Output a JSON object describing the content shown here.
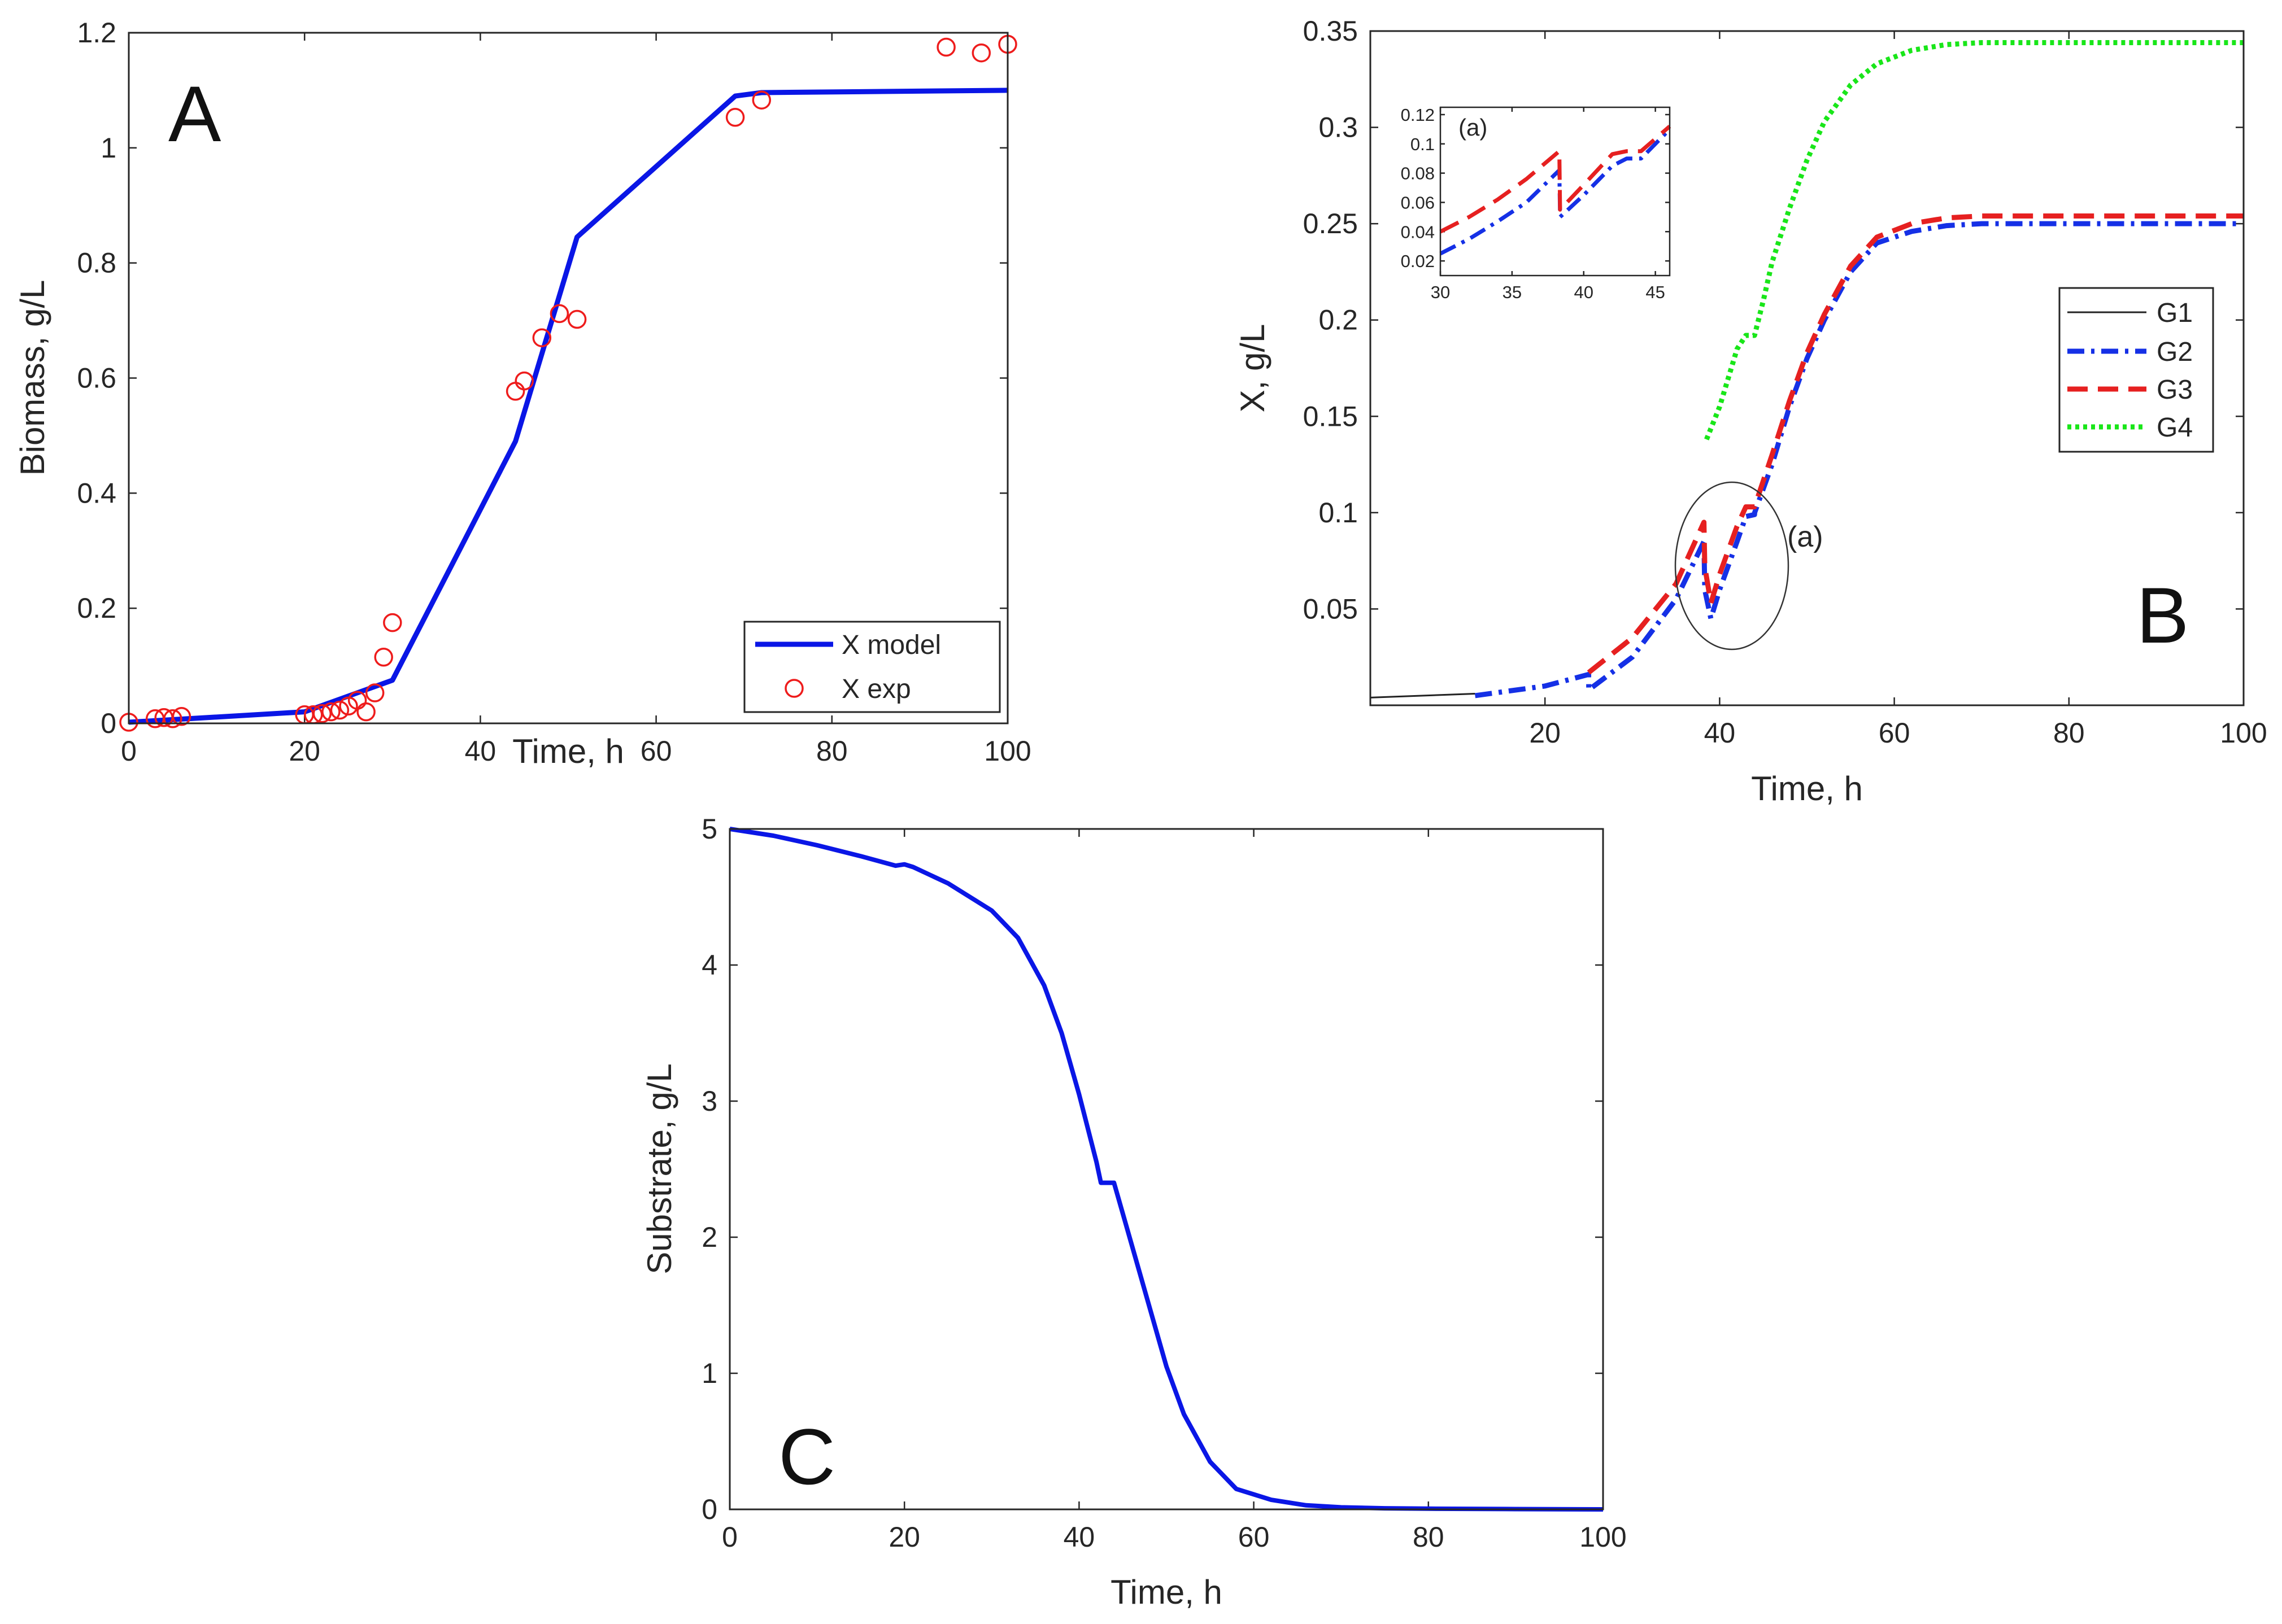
{
  "colors": {
    "model": "#0a16e6",
    "exp": "#ee1c1c",
    "g1": "#222222",
    "g2": "#1530e6",
    "g3": "#e62020",
    "g4": "#19e619",
    "axis": "#262626"
  },
  "chart_data": [
    {
      "id": "A",
      "type": "line+scatter",
      "panel_label": "A",
      "xlabel": "Time, h",
      "ylabel": "Biomass, g/L",
      "xlim": [
        0,
        100
      ],
      "ylim": [
        0,
        1.2
      ],
      "xticks": [
        0,
        20,
        40,
        60,
        80,
        100
      ],
      "xtick_labels": [
        "0",
        "20",
        "40",
        "60",
        "80",
        "100"
      ],
      "yticks": [
        0,
        0.2,
        0.4,
        0.6,
        0.8,
        1.0,
        1.2
      ],
      "ytick_labels": [
        "0",
        "0.2",
        "0.4",
        "0.6",
        "0.8",
        "1",
        "1.2"
      ],
      "legend": [
        "X model",
        "X exp"
      ],
      "legend_position": "bottom-right",
      "series": [
        {
          "name": "X model",
          "kind": "line",
          "color": "#0a16e6",
          "x": [
            0,
            20,
            30,
            44,
            51,
            69,
            72,
            100
          ],
          "y": [
            0.002,
            0.02,
            0.075,
            0.49,
            0.845,
            1.09,
            1.096,
            1.1
          ]
        },
        {
          "name": "X exp",
          "kind": "scatter",
          "color": "#ee1c1c",
          "x": [
            0,
            3,
            4,
            5,
            6,
            20,
            21,
            22,
            23,
            24,
            25,
            26,
            27,
            28,
            29,
            30,
            44,
            45,
            47,
            49,
            51,
            69,
            72,
            93,
            97,
            100
          ],
          "y": [
            0.002,
            0.008,
            0.01,
            0.008,
            0.012,
            0.015,
            0.015,
            0.017,
            0.02,
            0.023,
            0.03,
            0.04,
            0.02,
            0.053,
            0.115,
            0.175,
            0.577,
            0.595,
            0.67,
            0.712,
            0.702,
            1.053,
            1.083,
            1.175,
            1.165,
            1.18
          ]
        }
      ]
    },
    {
      "id": "B",
      "type": "line",
      "panel_label": "B",
      "xlabel": "Time, h",
      "ylabel": "X, g/L",
      "xlim": [
        0,
        100
      ],
      "ylim": [
        0,
        0.35
      ],
      "xticks": [
        20,
        40,
        60,
        80,
        100
      ],
      "xtick_labels": [
        "20",
        "40",
        "60",
        "80",
        "100"
      ],
      "yticks": [
        0.05,
        0.1,
        0.15,
        0.2,
        0.25,
        0.3,
        0.35
      ],
      "ytick_labels": [
        "0.05",
        "0.1",
        "0.15",
        "0.2",
        "0.25",
        "0.3",
        "0.35"
      ],
      "legend": [
        "G1",
        "G2",
        "G3",
        "G4"
      ],
      "legend_position": "right",
      "annotation": "(a)",
      "series": [
        {
          "name": "G1",
          "style": "solid",
          "color": "#222222",
          "x": [
            0,
            12
          ],
          "y": [
            0.004,
            0.006
          ]
        },
        {
          "name": "G2",
          "style": "dashdot",
          "color": "#1530e6",
          "x": [
            12,
            20,
            25,
            25.01,
            30,
            35,
            38.2,
            38.3,
            39,
            40,
            42,
            43,
            44,
            44.01,
            46,
            48,
            50,
            52,
            55,
            58,
            62,
            66,
            70,
            80,
            90,
            100
          ],
          "y": [
            0.005,
            0.01,
            0.016,
            0.008,
            0.025,
            0.055,
            0.085,
            0.06,
            0.045,
            0.06,
            0.085,
            0.098,
            0.099,
            0.1,
            0.125,
            0.155,
            0.18,
            0.2,
            0.225,
            0.24,
            0.246,
            0.249,
            0.25,
            0.25,
            0.25,
            0.25
          ]
        },
        {
          "name": "G3",
          "style": "dashed",
          "color": "#e62020",
          "x": [
            25,
            30,
            35,
            38.2,
            38.3,
            39,
            40,
            42,
            43,
            44,
            46,
            48,
            50,
            52,
            55,
            58,
            62,
            66,
            70,
            80,
            90,
            100
          ],
          "y": [
            0.017,
            0.035,
            0.063,
            0.095,
            0.072,
            0.053,
            0.068,
            0.093,
            0.103,
            0.103,
            0.13,
            0.158,
            0.183,
            0.203,
            0.228,
            0.243,
            0.25,
            0.253,
            0.254,
            0.254,
            0.254,
            0.254
          ]
        },
        {
          "name": "G4",
          "style": "dotted",
          "color": "#19e619",
          "x": [
            38.5,
            40,
            42,
            43,
            44,
            45,
            46,
            48,
            50,
            52,
            55,
            58,
            62,
            66,
            70,
            80,
            90,
            100
          ],
          "y": [
            0.138,
            0.155,
            0.185,
            0.192,
            0.192,
            0.21,
            0.23,
            0.258,
            0.283,
            0.303,
            0.322,
            0.333,
            0.34,
            0.343,
            0.344,
            0.344,
            0.344,
            0.344
          ]
        }
      ],
      "inset": {
        "label": "(a)",
        "xlim": [
          30,
          46
        ],
        "ylim": [
          0.01,
          0.125
        ],
        "xticks": [
          30,
          35,
          40,
          45
        ],
        "xtick_labels": [
          "30",
          "35",
          "40",
          "45"
        ],
        "yticks": [
          0.02,
          0.04,
          0.06,
          0.08,
          0.1,
          0.12
        ],
        "ytick_labels": [
          "0.02",
          "0.04",
          "0.06",
          "0.08",
          "0.1",
          "0.12"
        ],
        "series": [
          {
            "name": "G2",
            "style": "dashdot",
            "color": "#1530e6",
            "x": [
              30,
              32,
              34,
              36,
              38.3,
              38.35,
              40,
              42,
              43,
              44,
              46
            ],
            "y": [
              0.025,
              0.035,
              0.047,
              0.06,
              0.082,
              0.05,
              0.065,
              0.085,
              0.09,
              0.09,
              0.11
            ]
          },
          {
            "name": "G3",
            "style": "dashed",
            "color": "#e62020",
            "x": [
              30,
              32,
              34,
              36,
              38.3,
              38.35,
              40,
              42,
              43,
              44,
              46
            ],
            "y": [
              0.04,
              0.05,
              0.062,
              0.076,
              0.095,
              0.055,
              0.072,
              0.093,
              0.095,
              0.095,
              0.112
            ]
          }
        ]
      }
    },
    {
      "id": "C",
      "type": "line",
      "panel_label": "C",
      "xlabel": "Time, h",
      "ylabel": "Substrate, g/L",
      "xlim": [
        0,
        100
      ],
      "ylim": [
        0,
        5
      ],
      "xticks": [
        0,
        20,
        40,
        60,
        80,
        100
      ],
      "xtick_labels": [
        "0",
        "20",
        "40",
        "60",
        "80",
        "100"
      ],
      "yticks": [
        0,
        1,
        2,
        3,
        4,
        5
      ],
      "ytick_labels": [
        "0",
        "1",
        "2",
        "3",
        "4",
        "5"
      ],
      "series": [
        {
          "name": "Substrate",
          "style": "solid",
          "color": "#0a16e6",
          "x": [
            0,
            5,
            10,
            15,
            19,
            20,
            21,
            25,
            30,
            33,
            36,
            38,
            40,
            42,
            42.5,
            44,
            46,
            48,
            50,
            52,
            55,
            58,
            62,
            66,
            70,
            75,
            80,
            90,
            100
          ],
          "y": [
            5,
            4.95,
            4.88,
            4.8,
            4.73,
            4.74,
            4.72,
            4.6,
            4.4,
            4.2,
            3.85,
            3.5,
            3.05,
            2.55,
            2.4,
            2.4,
            1.95,
            1.5,
            1.05,
            0.7,
            0.35,
            0.15,
            0.07,
            0.03,
            0.015,
            0.008,
            0.005,
            0.002,
            0.0
          ]
        }
      ]
    }
  ]
}
